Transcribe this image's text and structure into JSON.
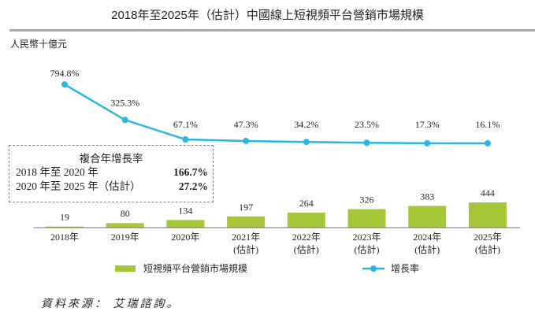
{
  "title": "2018年至2025年（估計）中國線上短視頻平台營銷市場規模",
  "unit": "人民幣十億元",
  "chart_data": {
    "type": "bar+line",
    "categories": [
      "2018年",
      "2019年",
      "2020年",
      "2021年\n(估計)",
      "2022年\n(估計)",
      "2023年\n(估計)",
      "2024年\n(估計)",
      "2025年\n(估計)"
    ],
    "category_labels": [
      [
        "2018年",
        ""
      ],
      [
        "2019年",
        ""
      ],
      [
        "2020年",
        ""
      ],
      [
        "2021年",
        "(估計)"
      ],
      [
        "2022年",
        "(估計)"
      ],
      [
        "2023年",
        "(估計)"
      ],
      [
        "2024年",
        "(估計)"
      ],
      [
        "2025年",
        "(估計)"
      ]
    ],
    "series": [
      {
        "name": "短視頻平台營銷市場規模",
        "type": "bar",
        "color": "#a6c838",
        "values": [
          19,
          80,
          134,
          197,
          264,
          326,
          383,
          444
        ],
        "labels": [
          "19",
          "80",
          "134",
          "197",
          "264",
          "326",
          "383",
          "444"
        ]
      },
      {
        "name": "增長率",
        "type": "line",
        "color": "#29b6e0",
        "values": [
          794.8,
          325.3,
          67.1,
          47.3,
          34.2,
          23.5,
          17.3,
          16.1
        ],
        "labels": [
          "794.8%",
          "325.3%",
          "67.1%",
          "47.3%",
          "34.2%",
          "23.5%",
          "17.3%",
          "16.1%"
        ]
      }
    ],
    "legend_placement": "bottom",
    "grid": false
  },
  "cagr": {
    "heading": "複合年增長率",
    "rows": [
      {
        "label": "2018 年至 2020 年",
        "value": "166.7%"
      },
      {
        "label": "2020 年至 2025 年（估計）",
        "value": "27.2%"
      }
    ]
  },
  "legend": {
    "bar": "短視頻平台營銷市場規模",
    "line": "增長率"
  },
  "source": "資料來源： 艾瑞諮詢。"
}
